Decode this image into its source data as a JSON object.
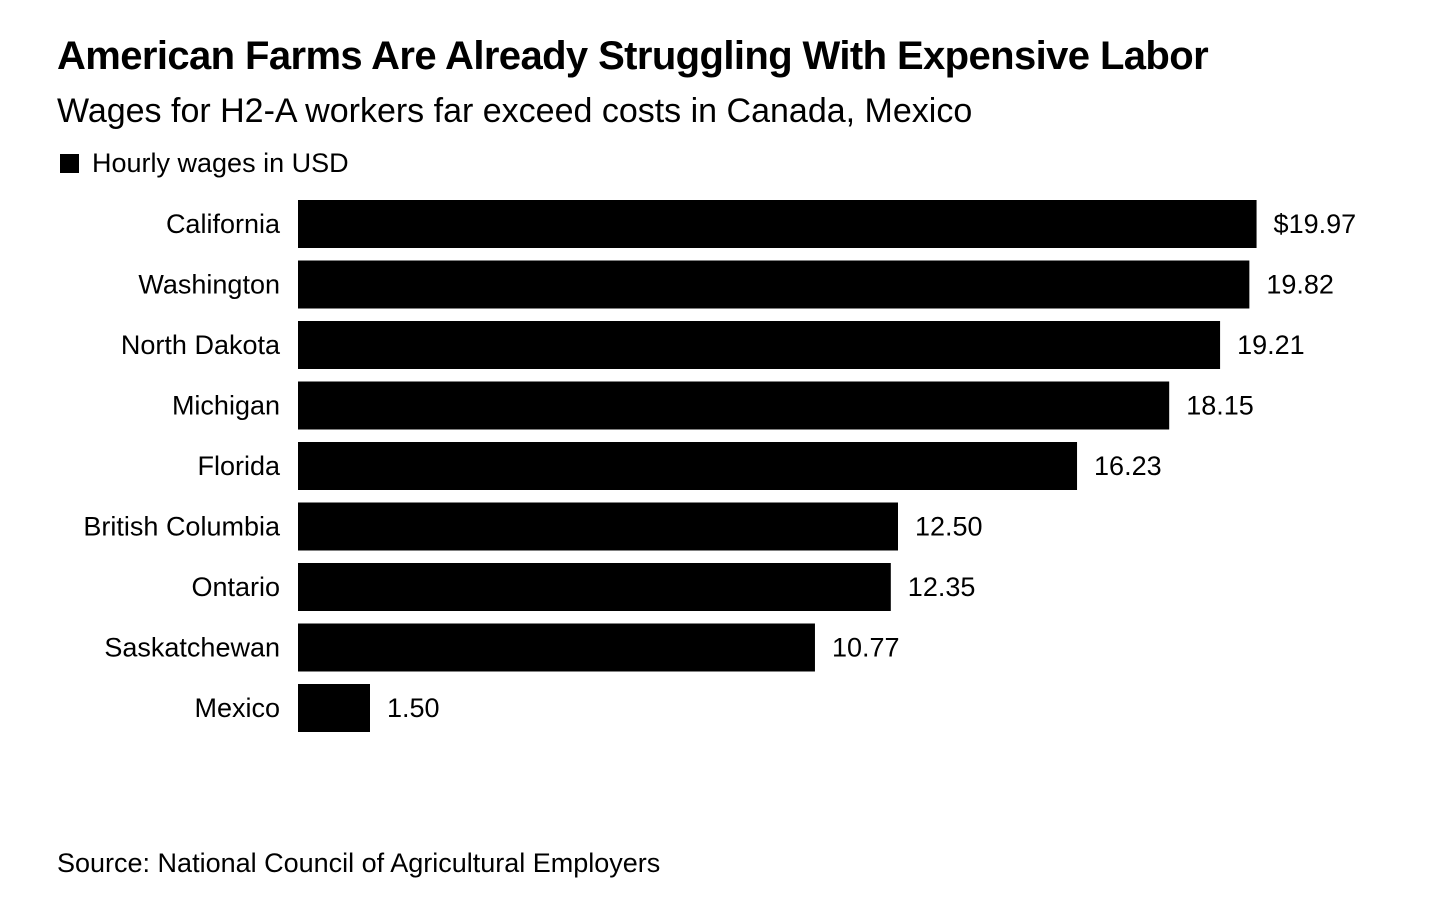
{
  "chart_data": {
    "type": "bar",
    "orientation": "horizontal",
    "title": "American Farms Are Already Struggling With Expensive Labor",
    "subtitle": "Wages for H2-A workers far exceed costs in Canada, Mexico",
    "legend": [
      "Hourly wages in USD"
    ],
    "categories": [
      "California",
      "Washington",
      "North Dakota",
      "Michigan",
      "Florida",
      "British Columbia",
      "Ontario",
      "Saskatchewan",
      "Mexico"
    ],
    "values": [
      19.97,
      19.82,
      19.21,
      18.15,
      16.23,
      12.5,
      12.35,
      10.77,
      1.5
    ],
    "value_labels": [
      "$19.97",
      "19.82",
      "19.21",
      "18.15",
      "16.23",
      "12.50",
      "12.35",
      "10.77",
      "1.50"
    ],
    "xlim": [
      0,
      20
    ],
    "grid": false,
    "bar_color": "#000000",
    "source": "Source: National Council of Agricultural Employers"
  }
}
